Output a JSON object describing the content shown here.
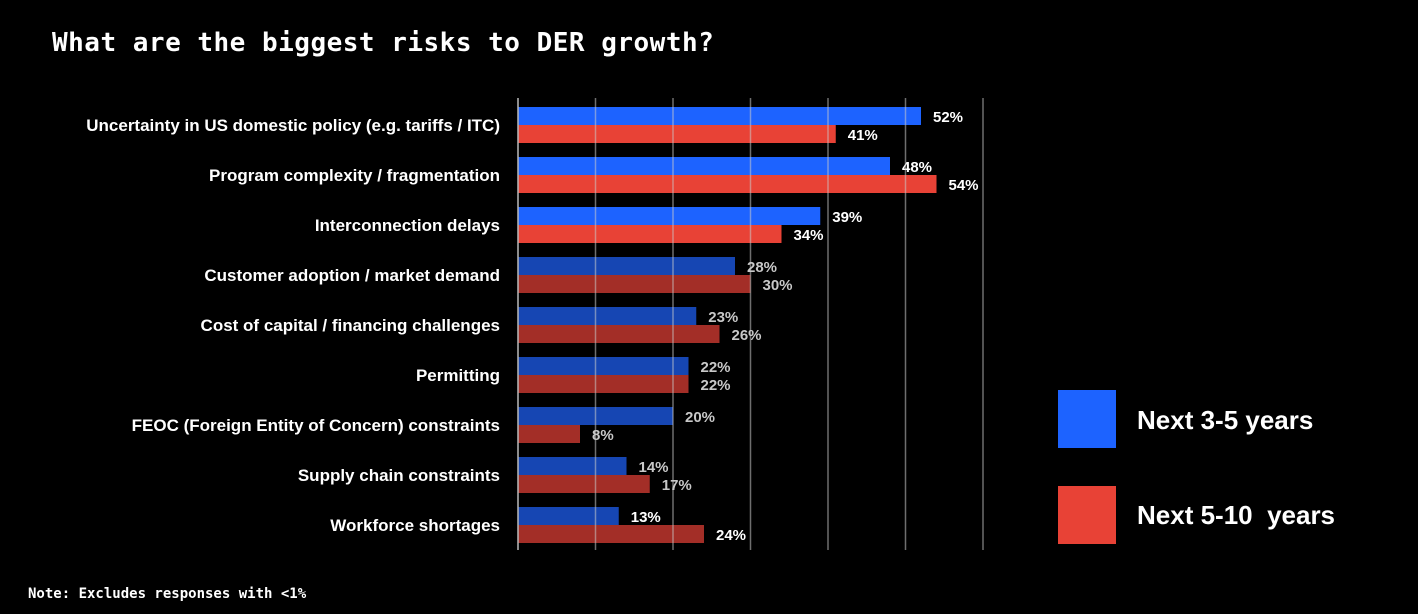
{
  "title": "What are the biggest risks to DER growth?",
  "note": "Note: Excludes responses with <1%",
  "chart_data": {
    "type": "bar",
    "orientation": "horizontal",
    "title": "What are the biggest risks to DER growth?",
    "categories": [
      "Uncertainty in US domestic policy (e.g. tariffs / ITC)",
      "Program complexity / fragmentation",
      "Interconnection delays",
      "Customer adoption / market demand",
      "Cost of capital / financing challenges",
      "Permitting",
      "FEOC (Foreign Entity of Concern) constraints",
      "Supply chain constraints",
      "Workforce shortages"
    ],
    "highlighted": [
      true,
      true,
      true,
      false,
      false,
      false,
      false,
      false,
      false
    ],
    "series": [
      {
        "name": "Next 3-5 years",
        "color": "#1d63ff",
        "dim_color": "#1646b3",
        "values": [
          52,
          48,
          39,
          28,
          23,
          22,
          20,
          14,
          13
        ]
      },
      {
        "name": "Next 5-10  years",
        "color": "#e84236",
        "dim_color": "#a32e27",
        "values": [
          41,
          54,
          34,
          30,
          26,
          22,
          8,
          17,
          24
        ]
      }
    ],
    "value_suffix": "%",
    "xlim": [
      0,
      60
    ],
    "grid_step": 10,
    "grid": true,
    "legend_position": "right"
  }
}
